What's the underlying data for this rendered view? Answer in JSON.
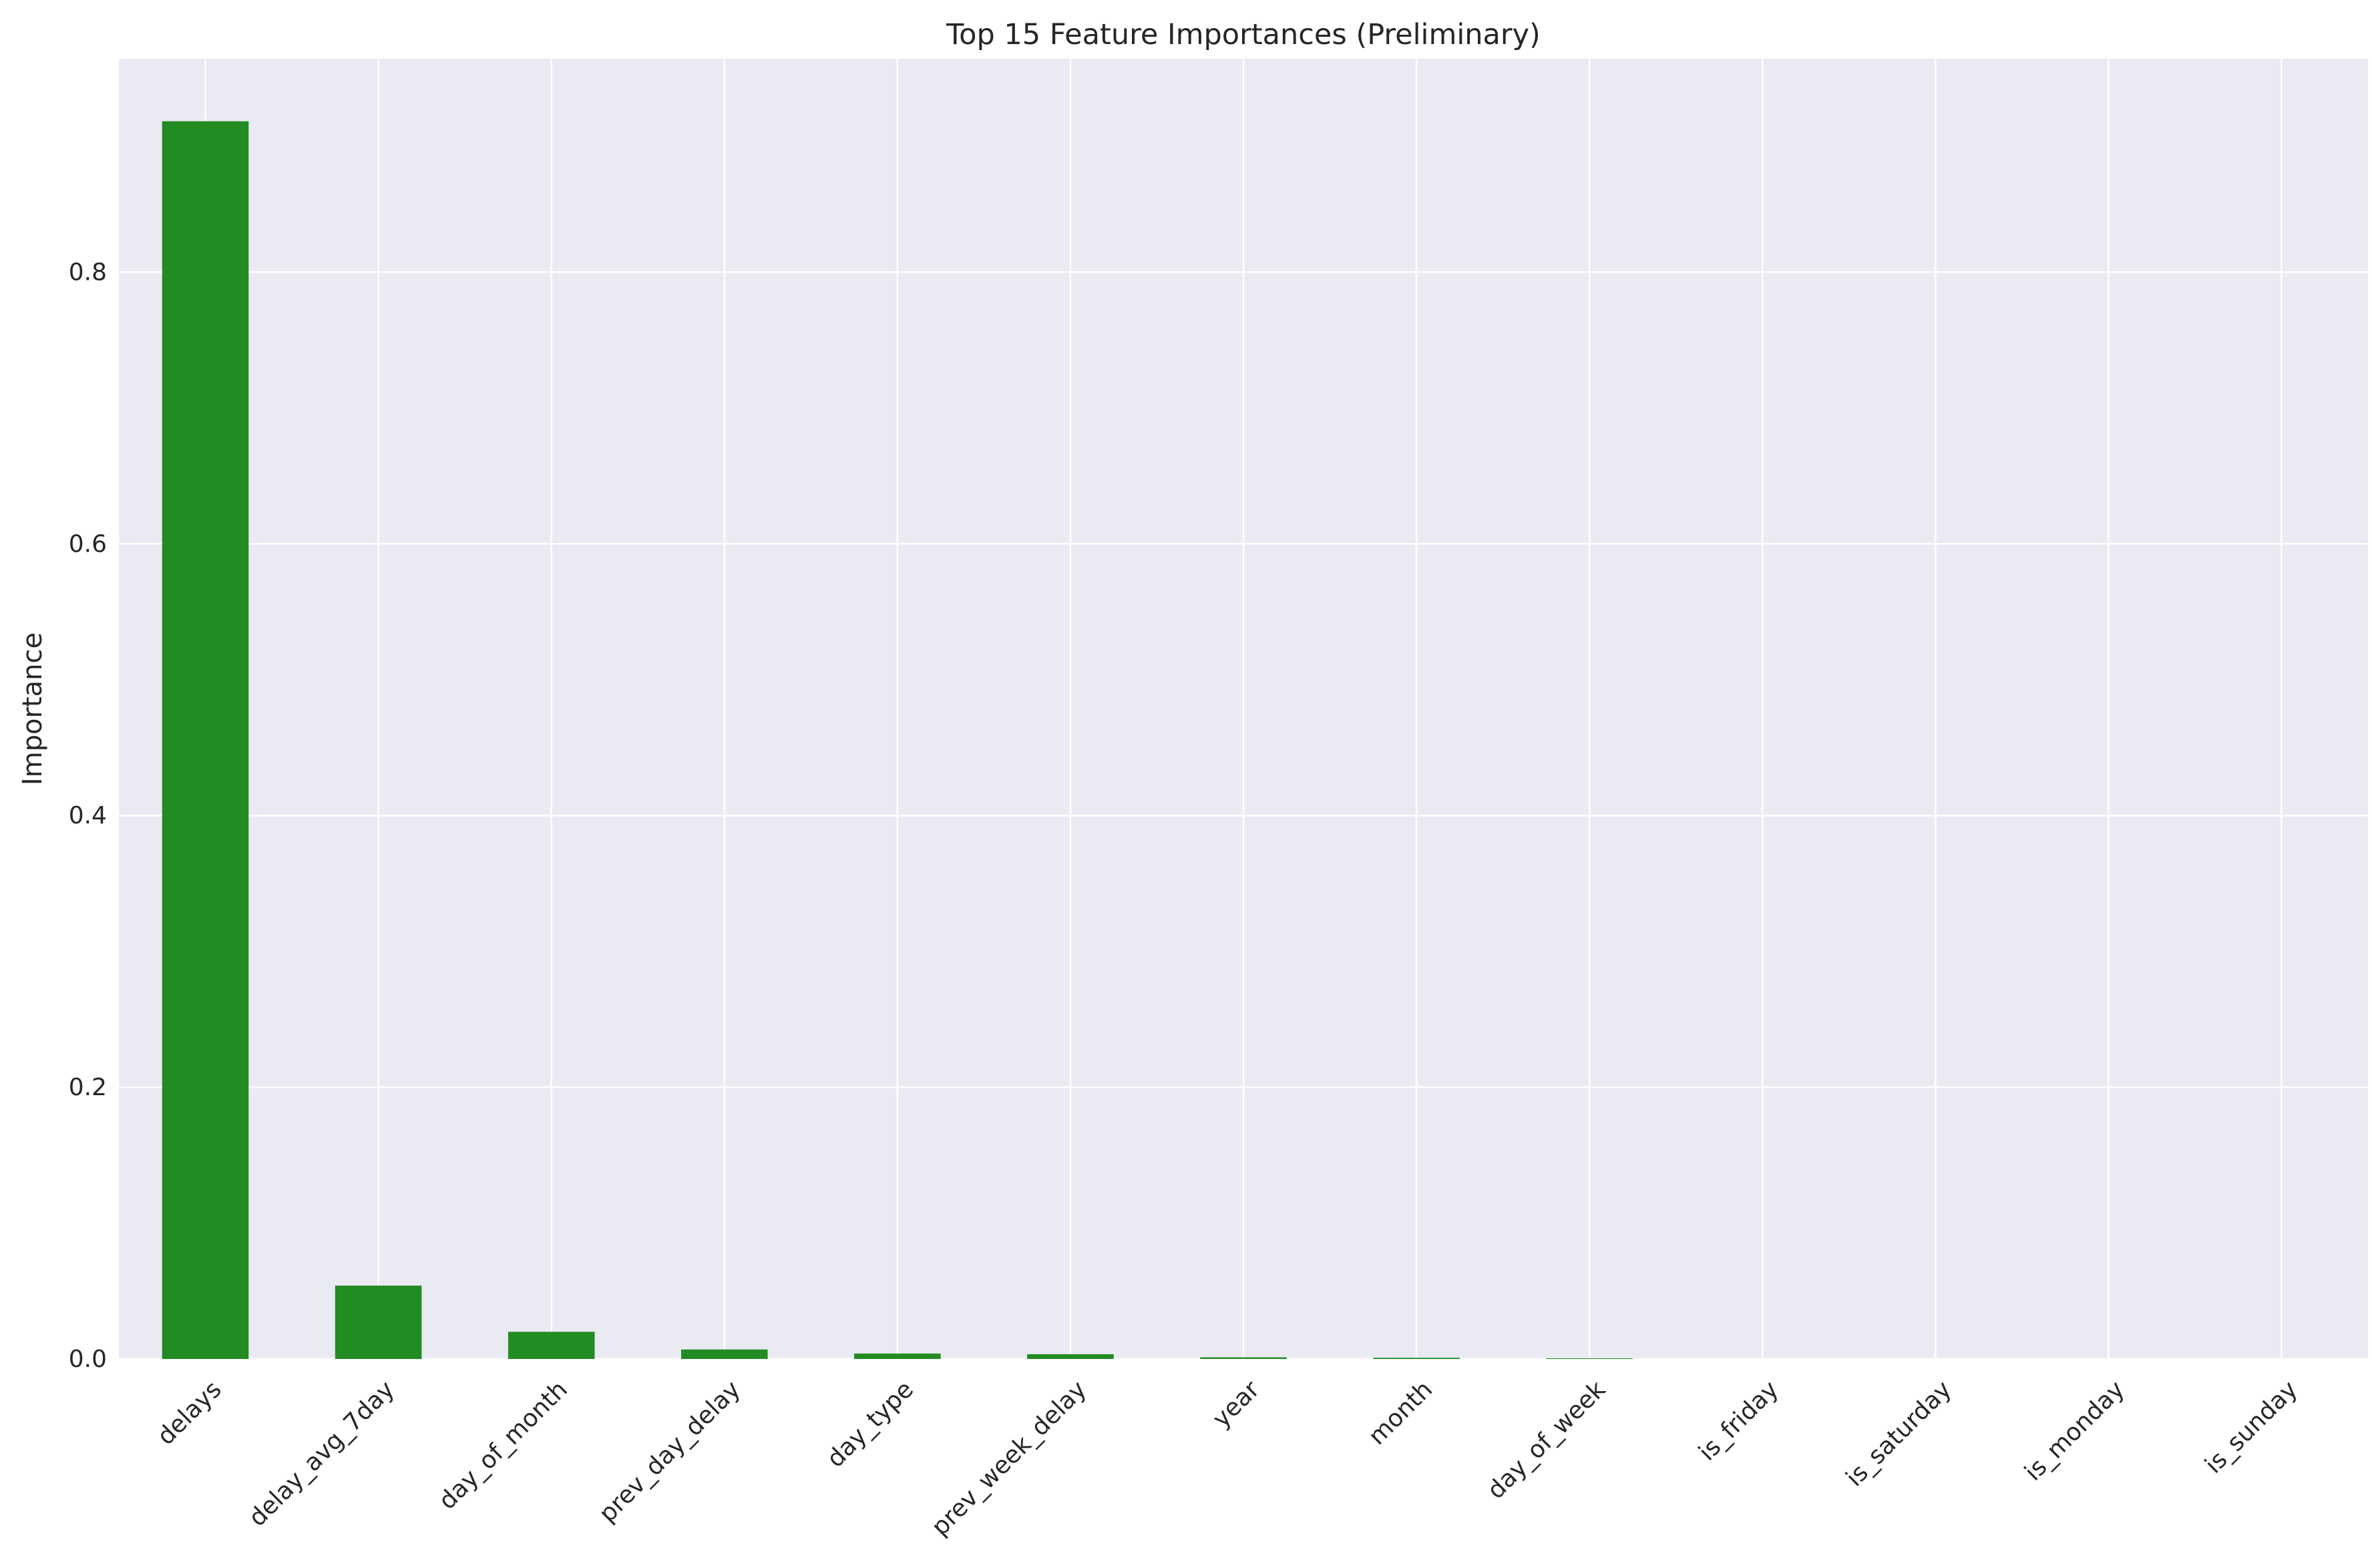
{
  "chart_data": {
    "type": "bar",
    "title": "Top 15 Feature Importances (Preliminary)",
    "xlabel": "",
    "ylabel": "Importance",
    "categories": [
      "delays",
      "delay_avg_7day",
      "day_of_month",
      "prev_day_delay",
      "day_type",
      "prev_week_delay",
      "year",
      "month",
      "day_of_week",
      "is_friday",
      "is_saturday",
      "is_monday",
      "is_sunday"
    ],
    "values": [
      0.911,
      0.054,
      0.02,
      0.007,
      0.004,
      0.0035,
      0.0012,
      0.0009,
      0.0005,
      0,
      0,
      0,
      0
    ],
    "ylim": [
      0,
      0.957
    ],
    "yticks": [
      0.0,
      0.2,
      0.4,
      0.6,
      0.8
    ],
    "ytick_labels": [
      "0.0",
      "0.2",
      "0.4",
      "0.6",
      "0.8"
    ],
    "bar_color": "#228b22",
    "background_color": "#eaeaf2",
    "grid_color": "#ffffff",
    "grid": true,
    "legend": "none"
  }
}
